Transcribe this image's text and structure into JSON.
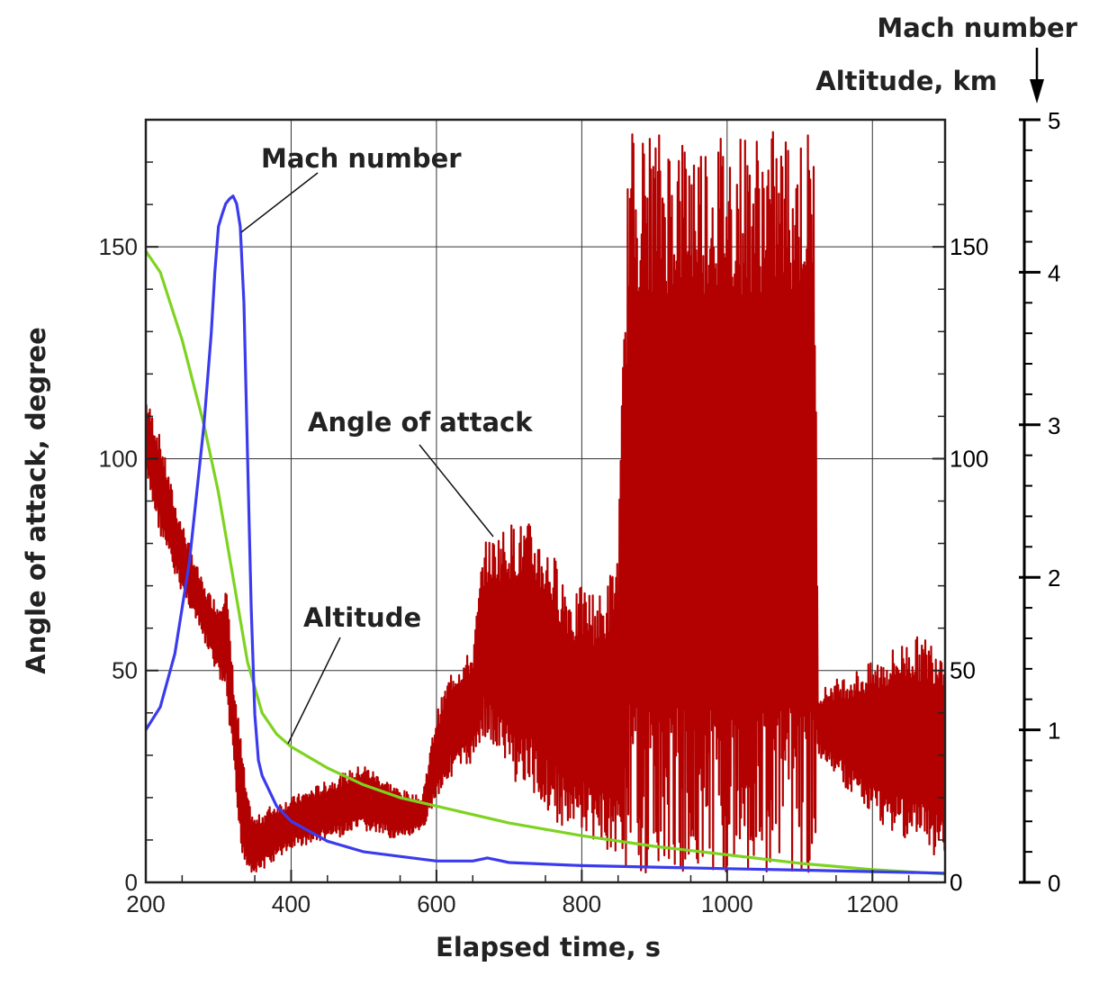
{
  "chart_data": {
    "type": "line",
    "xlabel": "Elapsed time, s",
    "ylabel": "Angle of attack, degree",
    "y2label": "Altitude, km",
    "y3label": "Mach number",
    "xlim": [
      200,
      1300
    ],
    "ylim": [
      0,
      180
    ],
    "y2lim": [
      0,
      180
    ],
    "y3lim": [
      0,
      5
    ],
    "xticks": [
      200,
      400,
      600,
      800,
      1000,
      1200
    ],
    "yticks": [
      0,
      50,
      100,
      150
    ],
    "y2ticks": [
      0,
      50,
      100,
      150
    ],
    "y3ticks": [
      0,
      1,
      2,
      3,
      4,
      5
    ],
    "grid": true,
    "annotations": {
      "mach": "Mach number",
      "aoa": "Angle of attack",
      "altitude": "Altitude"
    },
    "series": [
      {
        "name": "Angle of attack",
        "axis": "left",
        "color": "#b30000",
        "envelope": {
          "x": [
            200,
            220,
            240,
            260,
            280,
            300,
            310,
            320,
            330,
            340,
            350,
            370,
            400,
            450,
            500,
            550,
            580,
            600,
            620,
            650,
            665,
            680,
            700,
            730,
            760,
            790,
            800,
            830,
            850,
            865,
            880,
            900,
            950,
            1000,
            1050,
            1100,
            1120,
            1125,
            1150,
            1200,
            1250,
            1300
          ],
          "min": [
            95,
            82,
            72,
            65,
            57,
            48,
            44,
            28,
            8,
            3,
            2,
            4,
            8,
            10,
            12,
            10,
            12,
            20,
            25,
            28,
            35,
            30,
            25,
            20,
            15,
            10,
            12,
            8,
            5,
            3,
            2,
            2,
            2,
            2,
            2,
            2,
            2,
            30,
            25,
            15,
            10,
            5
          ],
          "max": [
            115,
            105,
            90,
            80,
            70,
            66,
            72,
            50,
            35,
            20,
            15,
            18,
            20,
            24,
            28,
            22,
            20,
            40,
            50,
            55,
            80,
            82,
            85,
            85,
            78,
            68,
            70,
            68,
            80,
            178,
            178,
            178,
            178,
            178,
            178,
            178,
            178,
            45,
            48,
            52,
            58,
            58
          ]
        }
      },
      {
        "name": "Altitude",
        "axis": "right",
        "color": "#7ed321",
        "x": [
          200,
          220,
          250,
          280,
          300,
          320,
          340,
          360,
          380,
          400,
          450,
          500,
          550,
          600,
          700,
          800,
          900,
          1000,
          1100,
          1200,
          1300
        ],
        "y": [
          149,
          144,
          128,
          108,
          92,
          72,
          52,
          40,
          35,
          32,
          27,
          23,
          20,
          18,
          14,
          11,
          8.5,
          6.5,
          4.5,
          3,
          2
        ]
      },
      {
        "name": "Mach number",
        "axis": "mach",
        "color": "#3b3bee",
        "x": [
          200,
          220,
          240,
          260,
          280,
          290,
          295,
          300,
          305,
          310,
          315,
          320,
          325,
          330,
          335,
          340,
          345,
          350,
          355,
          360,
          380,
          400,
          450,
          500,
          550,
          600,
          650,
          670,
          680,
          700,
          800,
          900,
          1000,
          1100,
          1200,
          1300
        ],
        "y": [
          1.0,
          1.15,
          1.5,
          2.1,
          3.0,
          3.6,
          4.0,
          4.3,
          4.38,
          4.45,
          4.48,
          4.5,
          4.45,
          4.3,
          3.8,
          2.8,
          1.8,
          1.1,
          0.8,
          0.7,
          0.5,
          0.4,
          0.27,
          0.2,
          0.17,
          0.14,
          0.14,
          0.16,
          0.15,
          0.13,
          0.11,
          0.1,
          0.09,
          0.08,
          0.07,
          0.06
        ]
      }
    ]
  }
}
